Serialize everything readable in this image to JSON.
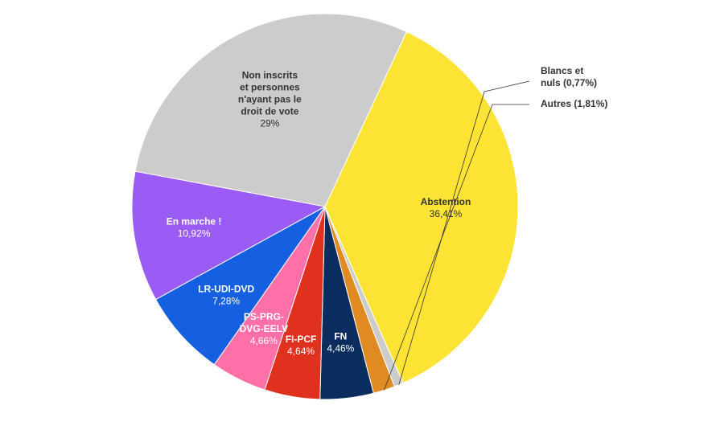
{
  "chart_data": {
    "type": "pie",
    "title": "",
    "slices": [
      {
        "name": "Abstention",
        "lines": [
          "Abstention"
        ],
        "value_label": "36,41%",
        "value": 36.41,
        "color": "#fde333",
        "text_color": "#333333",
        "label_mode": "inside"
      },
      {
        "name": "Blancs et nuls",
        "lines": [
          "Blancs et",
          "nuls (0,77%)"
        ],
        "value_label": "",
        "value": 0.77,
        "color": "#cccccc",
        "text_color": "#333333",
        "label_mode": "outside"
      },
      {
        "name": "Autres",
        "lines": [
          "Autres (1,81%)"
        ],
        "value_label": "",
        "value": 1.81,
        "color": "#e08a22",
        "text_color": "#333333",
        "label_mode": "outside"
      },
      {
        "name": "FN",
        "lines": [
          "FN"
        ],
        "value_label": "4,46%",
        "value": 4.46,
        "color": "#0b2c5e",
        "text_color": "#ffffff",
        "label_mode": "inside"
      },
      {
        "name": "FI-PCF",
        "lines": [
          "FI-PCF"
        ],
        "value_label": "4,64%",
        "value": 4.64,
        "color": "#e0301e",
        "text_color": "#ffffff",
        "label_mode": "inside"
      },
      {
        "name": "PS-PRG-DVG-EELV",
        "lines": [
          "PS-PRG-",
          "DVG-EELV"
        ],
        "value_label": "4,66%",
        "value": 4.66,
        "color": "#ff6fa8",
        "text_color": "#ffffff",
        "label_mode": "inside"
      },
      {
        "name": "LR-UDI-DVD",
        "lines": [
          "LR-UDI-DVD"
        ],
        "value_label": "7,28%",
        "value": 7.28,
        "color": "#1560e0",
        "text_color": "#ffffff",
        "label_mode": "inside"
      },
      {
        "name": "En marche !",
        "lines": [
          "En marche !"
        ],
        "value_label": "10,92%",
        "value": 10.92,
        "color": "#9a5cf5",
        "text_color": "#ffffff",
        "label_mode": "inside"
      },
      {
        "name": "Non inscrits et personnes n'ayant pas le droit de vote",
        "lines": [
          "Non inscrits",
          "et personnes",
          "n'ayant pas le",
          "droit de vote"
        ],
        "value_label": "29%",
        "value": 29,
        "color": "#cccccc",
        "text_color": "#333333",
        "label_mode": "inside"
      }
    ]
  }
}
